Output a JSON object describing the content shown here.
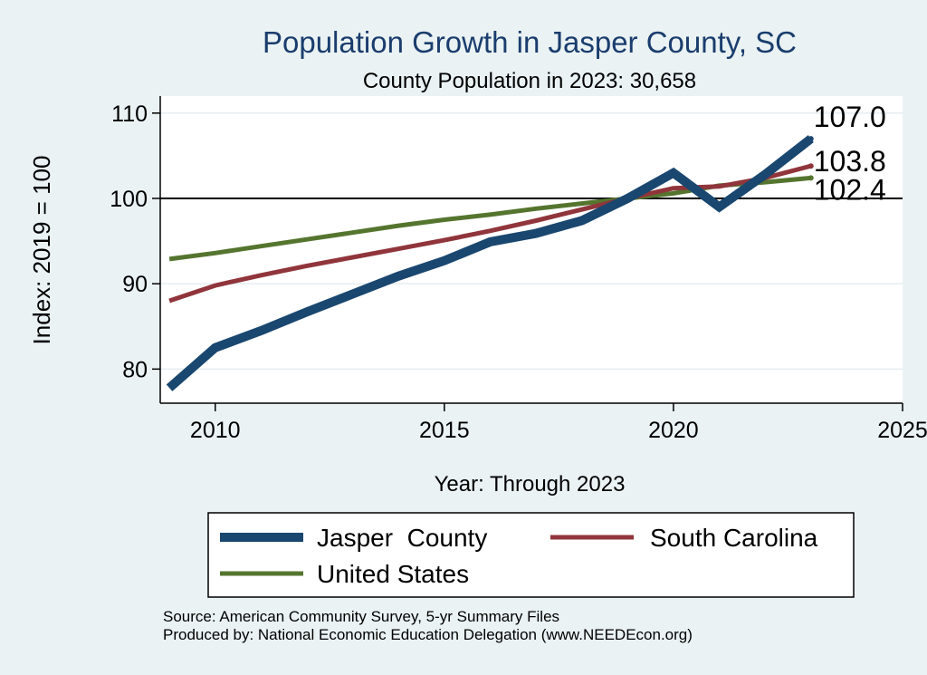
{
  "chart_data": {
    "type": "line",
    "title": "Population Growth in Jasper County, SC",
    "subtitle": "County Population in 2023: 30,658",
    "xlabel": "Year: Through 2023",
    "ylabel": "Index: 2019 = 100",
    "xlim": [
      2008.8,
      2025
    ],
    "ylim": [
      76,
      112
    ],
    "x_ticks": [
      2010,
      2015,
      2020,
      2025
    ],
    "y_ticks": [
      80,
      90,
      100,
      110
    ],
    "reference_line": 100,
    "grid": true,
    "x": [
      2009,
      2010,
      2011,
      2012,
      2013,
      2014,
      2015,
      2016,
      2017,
      2018,
      2019,
      2020,
      2021,
      2022,
      2023
    ],
    "series": [
      {
        "name": "Jasper  County",
        "color": "#1a476f",
        "values": [
          77.8,
          82.5,
          84.5,
          86.7,
          88.8,
          90.9,
          92.7,
          94.9,
          95.9,
          97.4,
          100.0,
          103.0,
          99.0,
          102.8,
          107.0
        ],
        "end_label": "107.0"
      },
      {
        "name": "South Carolina",
        "color": "#90353b",
        "values": [
          88.0,
          89.8,
          91.0,
          92.1,
          93.1,
          94.1,
          95.1,
          96.2,
          97.4,
          98.7,
          100.0,
          101.2,
          101.4,
          102.4,
          103.8
        ],
        "end_label": "103.8"
      },
      {
        "name": "United States",
        "color": "#55752f",
        "values": [
          92.9,
          93.6,
          94.4,
          95.2,
          96.0,
          96.8,
          97.5,
          98.1,
          98.8,
          99.4,
          100.0,
          100.6,
          101.5,
          101.9,
          102.4
        ],
        "end_label": "102.4"
      }
    ],
    "legend_position": "bottom"
  },
  "source_notes": {
    "line1": "Source: American Community Survey, 5-yr Summary Files",
    "line2": "Produced by: National Economic Education Delegation (www.NEEDEcon.org)"
  }
}
